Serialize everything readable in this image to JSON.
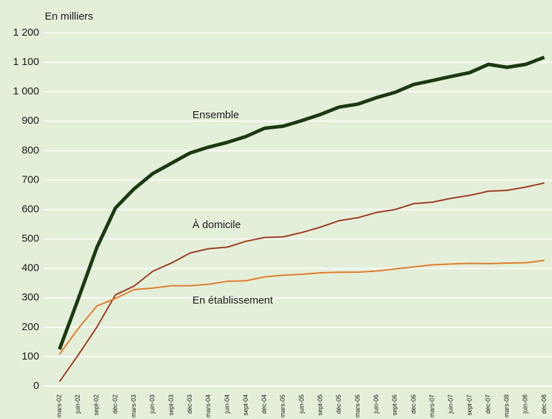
{
  "chart_data": {
    "type": "line",
    "y_label": "En milliers",
    "categories": [
      "mars-02",
      "juin-02",
      "sept-02",
      "déc-02",
      "mars-03",
      "juin-03",
      "sept-03",
      "déc-03",
      "mars-04",
      "juin-04",
      "sept-04",
      "déc-04",
      "mars-05",
      "juin-05",
      "sept-05",
      "déc-05",
      "mars-06",
      "juin-06",
      "sept-06",
      "déc-06",
      "mars-07",
      "juin-07",
      "sept-07",
      "déc-07",
      "mars-08",
      "juin-08",
      "déc-08"
    ],
    "series": [
      {
        "name": "Ensemble",
        "color": "#1b3a12",
        "values": [
          125,
          295,
          470,
          605,
          670,
          722,
          757,
          792,
          812,
          828,
          848,
          876,
          883,
          902,
          923,
          948,
          958,
          980,
          998,
          1025,
          1038,
          1052,
          1065,
          1093,
          1083,
          1093,
          1117
        ]
      },
      {
        "name": "À domicile",
        "color": "#9b3a1e",
        "values": [
          15,
          105,
          200,
          310,
          340,
          390,
          418,
          452,
          467,
          472,
          492,
          505,
          507,
          522,
          540,
          562,
          572,
          590,
          600,
          620,
          625,
          638,
          648,
          662,
          665,
          676,
          690
        ]
      },
      {
        "name": "En établissement",
        "color": "#e07a2a",
        "values": [
          108,
          195,
          272,
          298,
          328,
          333,
          341,
          341,
          346,
          356,
          358,
          371,
          377,
          380,
          385,
          387,
          387,
          391,
          398,
          405,
          412,
          415,
          417,
          416,
          418,
          419,
          427
        ]
      }
    ],
    "ylim": [
      0,
      1200
    ],
    "yticks": [
      0,
      100,
      200,
      300,
      400,
      500,
      600,
      700,
      800,
      900,
      {
        "value": 1000,
        "label": "1 000"
      },
      {
        "value": 1100,
        "label": "1 100"
      },
      {
        "value": 1200,
        "label": "1 200"
      }
    ],
    "grid": true
  }
}
